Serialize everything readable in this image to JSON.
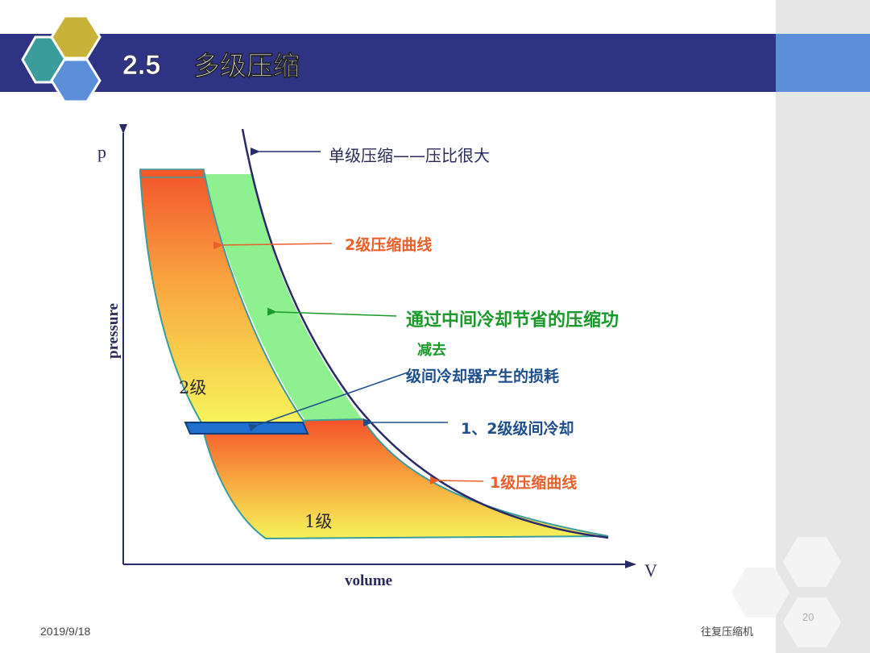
{
  "slide": {
    "number": "2.5",
    "title": "多级压缩",
    "page_number": "20",
    "date": "2019/9/18",
    "footer": "往复压缩机"
  },
  "diagram": {
    "p_label": "p",
    "v_label": "V",
    "y_axis_label": "pressure",
    "x_axis_label": "volume",
    "stage2_label": "2级",
    "stage1_label": "1级",
    "annotations": {
      "single_stage": "单级压缩——压比很大",
      "stage2_curve": "2级压缩曲线",
      "saved_work_line1": "通过中间冷却节省的压缩功",
      "saved_work_line2": "减去",
      "cooler_loss": "级间冷却器产生的损耗",
      "intercooling": "1、2级级间冷却",
      "stage1_curve": "1级压缩曲线"
    }
  },
  "colors": {
    "header_bar": "#2f3384",
    "sidebar": "#e6e6e6",
    "accent_blue": "#5b8fd8",
    "hex_teal": "#3b9c9c",
    "hex_gold": "#c9b23a",
    "curve": "#2a2a6a",
    "green_region": "#8ef08e",
    "cooler_band": "#1f6fd1"
  }
}
